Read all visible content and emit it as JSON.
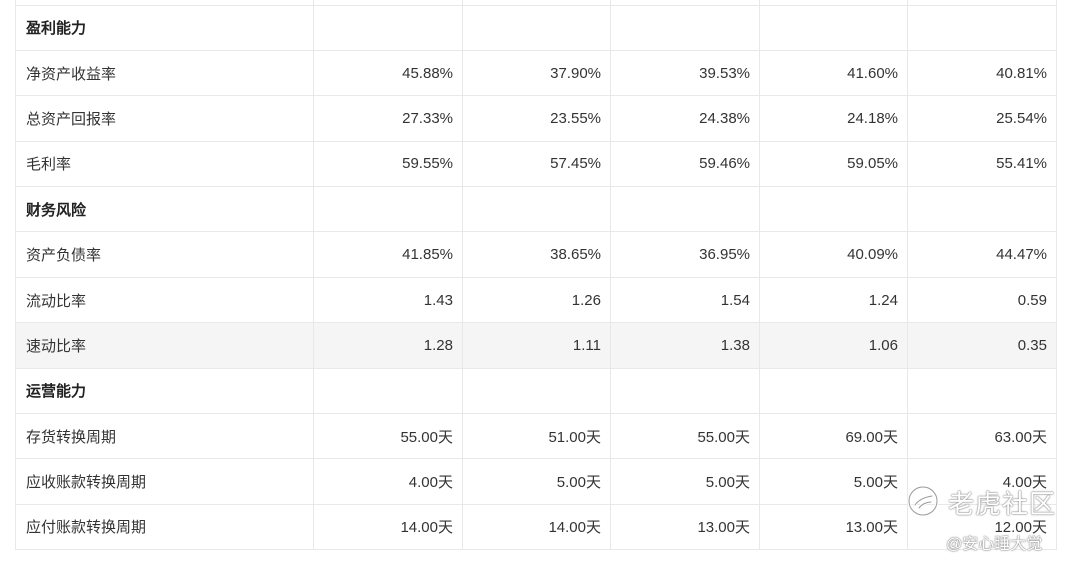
{
  "sections": [
    {
      "title": "盈利能力",
      "rows": [
        {
          "label": "净资产收益率",
          "values": [
            "45.88%",
            "37.90%",
            "39.53%",
            "41.60%",
            "40.81%"
          ]
        },
        {
          "label": "总资产回报率",
          "values": [
            "27.33%",
            "23.55%",
            "24.38%",
            "24.18%",
            "25.54%"
          ]
        },
        {
          "label": "毛利率",
          "values": [
            "59.55%",
            "57.45%",
            "59.46%",
            "59.05%",
            "55.41%"
          ]
        }
      ]
    },
    {
      "title": "财务风险",
      "rows": [
        {
          "label": "资产负债率",
          "values": [
            "41.85%",
            "38.65%",
            "36.95%",
            "40.09%",
            "44.47%"
          ]
        },
        {
          "label": "流动比率",
          "values": [
            "1.43",
            "1.26",
            "1.54",
            "1.24",
            "0.59"
          ]
        },
        {
          "label": "速动比率",
          "values": [
            "1.28",
            "1.11",
            "1.38",
            "1.06",
            "0.35"
          ]
        }
      ]
    },
    {
      "title": "运营能力",
      "rows": [
        {
          "label": "存货转换周期",
          "values": [
            "55.00天",
            "51.00天",
            "55.00天",
            "69.00天",
            "63.00天"
          ]
        },
        {
          "label": "应收账款转换周期",
          "values": [
            "4.00天",
            "5.00天",
            "5.00天",
            "5.00天",
            "4.00天"
          ]
        },
        {
          "label": "应付账款转换周期",
          "values": [
            "14.00天",
            "14.00天",
            "13.00天",
            "13.00天",
            "12.00天"
          ]
        }
      ]
    }
  ],
  "watermark": {
    "brand": "老虎社区",
    "author": "@安心睡大觉",
    "icon": "tiger-community-logo-icon"
  },
  "colors": {
    "border": "#e8e8e8",
    "text": "#333333",
    "highlight_row": "#f5f5f5"
  }
}
